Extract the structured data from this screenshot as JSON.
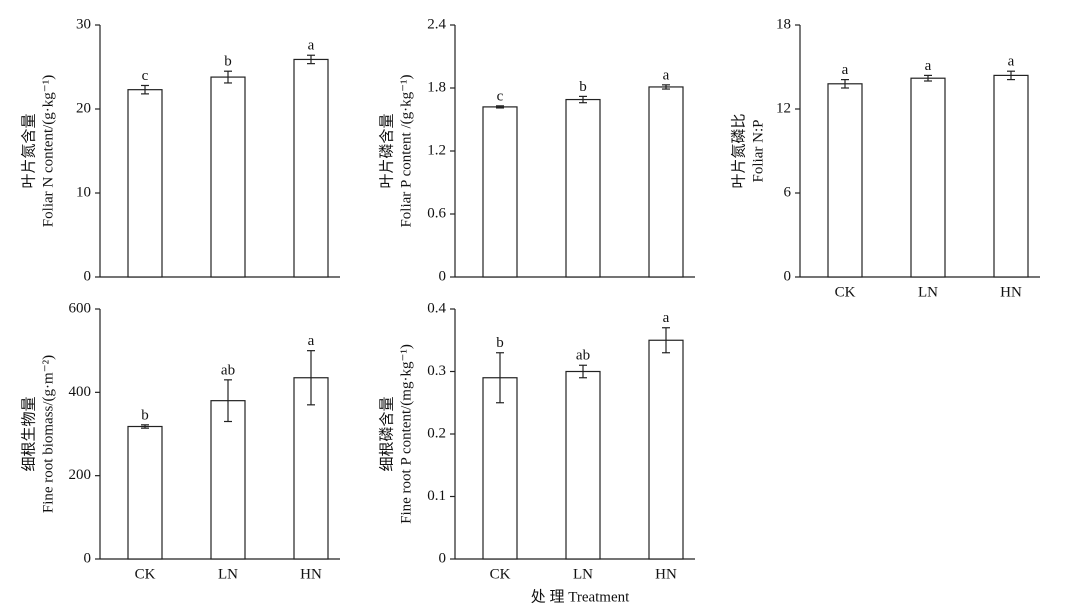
{
  "xlabel": "处 理 Treatment",
  "chart_data": [
    {
      "type": "bar",
      "ylabel": [
        "叶片氮含量",
        "Foliar N content/(g·kg⁻¹)"
      ],
      "categories": [
        null,
        null,
        null
      ],
      "values": [
        22.3,
        23.8,
        25.9
      ],
      "errors": [
        0.5,
        0.7,
        0.5
      ],
      "annotations": [
        "c",
        "b",
        "a"
      ],
      "ylim": [
        0,
        30
      ],
      "yticks": [
        0,
        10,
        20,
        30
      ],
      "color": "#ffffff"
    },
    {
      "type": "bar",
      "ylabel": [
        "叶片磷含量",
        "Foliar P content /(g·kg⁻¹)"
      ],
      "categories": [
        null,
        null,
        null
      ],
      "values": [
        1.62,
        1.69,
        1.81
      ],
      "errors": [
        0.01,
        0.03,
        0.02
      ],
      "annotations": [
        "c",
        "b",
        "a"
      ],
      "ylim": [
        0,
        2.4
      ],
      "yticks": [
        0,
        0.6,
        1.2,
        1.8,
        2.4
      ],
      "color": "#ffffff"
    },
    {
      "type": "bar",
      "ylabel": [
        "叶片氮磷比",
        "Foliar N:P"
      ],
      "categories": [
        "CK",
        "LN",
        "HN"
      ],
      "values": [
        13.8,
        14.2,
        14.4
      ],
      "errors": [
        0.3,
        0.2,
        0.3
      ],
      "annotations": [
        "a",
        "a",
        "a"
      ],
      "ylim": [
        0,
        18
      ],
      "yticks": [
        0,
        6,
        12,
        18
      ],
      "color": "#ffffff"
    },
    {
      "type": "bar",
      "ylabel": [
        "细根生物量",
        "Fine root biomass/(g·m⁻²)"
      ],
      "categories": [
        "CK",
        "LN",
        "HN"
      ],
      "values": [
        318,
        380,
        435
      ],
      "errors": [
        4,
        50,
        65
      ],
      "annotations": [
        "b",
        "ab",
        "a"
      ],
      "ylim": [
        0,
        600
      ],
      "yticks": [
        0,
        200,
        400,
        600
      ],
      "color": "#ffffff"
    },
    {
      "type": "bar",
      "ylabel": [
        "细根磷含量",
        "Fine root P content/(mg·kg⁻¹)"
      ],
      "categories": [
        "CK",
        "LN",
        "HN"
      ],
      "values": [
        0.29,
        0.3,
        0.35
      ],
      "errors": [
        0.04,
        0.01,
        0.02
      ],
      "annotations": [
        "b",
        "ab",
        "a"
      ],
      "ylim": [
        0,
        0.4
      ],
      "yticks": [
        0,
        0.1,
        0.2,
        0.3,
        0.4
      ],
      "color": "#ffffff"
    }
  ]
}
